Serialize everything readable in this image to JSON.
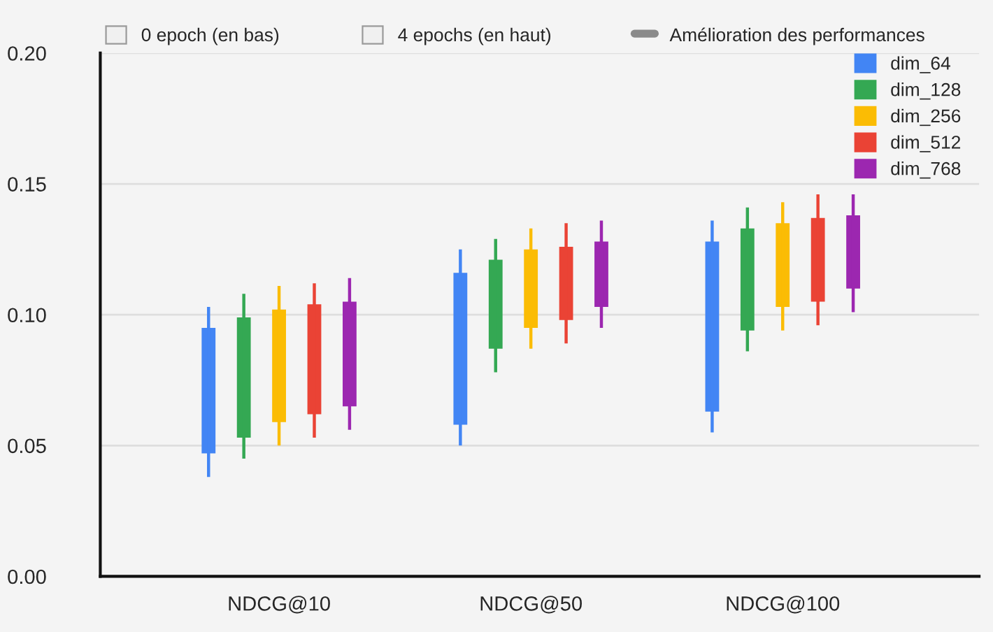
{
  "chart_data": {
    "type": "candlestick",
    "categories": [
      "NDCG@10",
      "NDCG@50",
      "NDCG@100"
    ],
    "series": [
      {
        "name": "dim_64",
        "color": "#4285f4",
        "ohlc": [
          [
            0.047,
            0.103,
            0.038,
            0.095
          ],
          [
            0.058,
            0.125,
            0.05,
            0.116
          ],
          [
            0.063,
            0.136,
            0.055,
            0.128
          ]
        ]
      },
      {
        "name": "dim_128",
        "color": "#34a853",
        "ohlc": [
          [
            0.053,
            0.108,
            0.045,
            0.099
          ],
          [
            0.087,
            0.129,
            0.078,
            0.121
          ],
          [
            0.094,
            0.141,
            0.086,
            0.133
          ]
        ]
      },
      {
        "name": "dim_256",
        "color": "#fbbc04",
        "ohlc": [
          [
            0.059,
            0.111,
            0.05,
            0.102
          ],
          [
            0.095,
            0.133,
            0.087,
            0.125
          ],
          [
            0.103,
            0.143,
            0.094,
            0.135
          ]
        ]
      },
      {
        "name": "dim_512",
        "color": "#ea4335",
        "ohlc": [
          [
            0.062,
            0.112,
            0.053,
            0.104
          ],
          [
            0.098,
            0.135,
            0.089,
            0.126
          ],
          [
            0.105,
            0.146,
            0.096,
            0.137
          ]
        ]
      },
      {
        "name": "dim_768",
        "color": "#9c27b0",
        "ohlc": [
          [
            0.065,
            0.114,
            0.056,
            0.105
          ],
          [
            0.103,
            0.136,
            0.095,
            0.128
          ],
          [
            0.11,
            0.146,
            0.101,
            0.138
          ]
        ]
      }
    ],
    "ylim": [
      0,
      0.2
    ],
    "yticks": [
      {
        "value": 0,
        "label": "0.00"
      },
      {
        "value": 0.05,
        "label": "0.05"
      },
      {
        "value": 0.1,
        "label": "0.10"
      },
      {
        "value": 0.15,
        "label": "0.15"
      },
      {
        "value": 0.2,
        "label": "0.20"
      }
    ],
    "grid": "y",
    "legend": "top right",
    "annotations": [
      "0 epoch (en bas)",
      "4 epochs (en haut)",
      "Amélioration des performances"
    ]
  }
}
